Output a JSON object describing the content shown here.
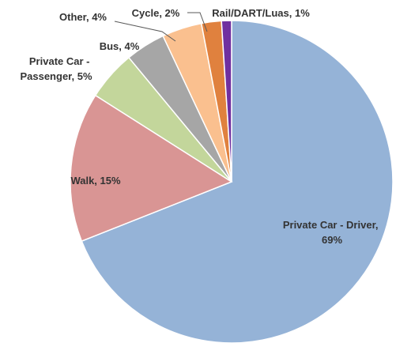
{
  "chart_data": {
    "type": "pie",
    "title": "",
    "slices": [
      {
        "label_lines": [
          "Private Car - Driver,",
          "69%"
        ],
        "category": "Private Car - Driver",
        "value": 69,
        "color": "#95b3d7"
      },
      {
        "label_lines": [
          "Walk, 15%"
        ],
        "category": "Walk",
        "value": 15,
        "color": "#d99594"
      },
      {
        "label_lines": [
          "Private Car -",
          "Passenger, 5%"
        ],
        "category": "Private Car - Passenger",
        "value": 5,
        "color": "#c3d69b"
      },
      {
        "label_lines": [
          "Bus, 4%"
        ],
        "category": "Bus",
        "value": 4,
        "color": "#a6a6a6"
      },
      {
        "label_lines": [
          "Other, 4%"
        ],
        "category": "Other",
        "value": 4,
        "color": "#fac08f"
      },
      {
        "label_lines": [
          "Cycle, 2%"
        ],
        "category": "Cycle",
        "value": 2,
        "color": "#e0813e"
      },
      {
        "label_lines": [
          "Rail/DART/Luas, 1%"
        ],
        "category": "Rail/DART/Luas",
        "value": 1,
        "color": "#7030a0"
      }
    ],
    "start_angle_deg": 0,
    "direction": "clockwise",
    "legend": "none",
    "data_labels": "category, percent"
  }
}
